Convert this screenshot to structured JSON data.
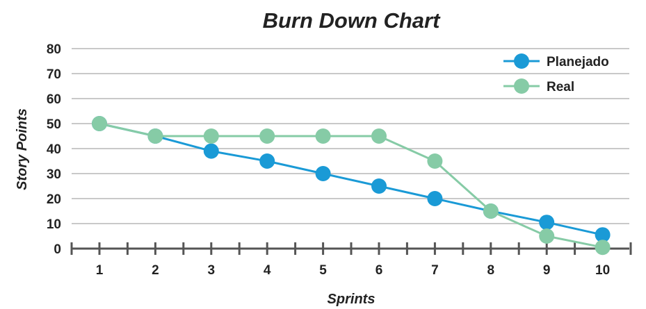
{
  "chart_data": {
    "type": "line",
    "title": "Burn Down Chart",
    "xlabel": "Sprints",
    "ylabel": "Story Points",
    "categories": [
      "1",
      "2",
      "3",
      "4",
      "5",
      "6",
      "7",
      "8",
      "9",
      "10"
    ],
    "ylim": [
      0,
      80
    ],
    "yticks": [
      0,
      10,
      20,
      30,
      40,
      50,
      60,
      70,
      80
    ],
    "grid": true,
    "legend_position": "top-right",
    "series": [
      {
        "name": "Planejado",
        "color": "#1a9ad6",
        "values": [
          50,
          45,
          39,
          35,
          30,
          25,
          20,
          15,
          10.5,
          5.5
        ]
      },
      {
        "name": "Real",
        "color": "#86cba6",
        "values": [
          50,
          45,
          45,
          45,
          45,
          45,
          35,
          15,
          5,
          0.5
        ]
      }
    ]
  }
}
